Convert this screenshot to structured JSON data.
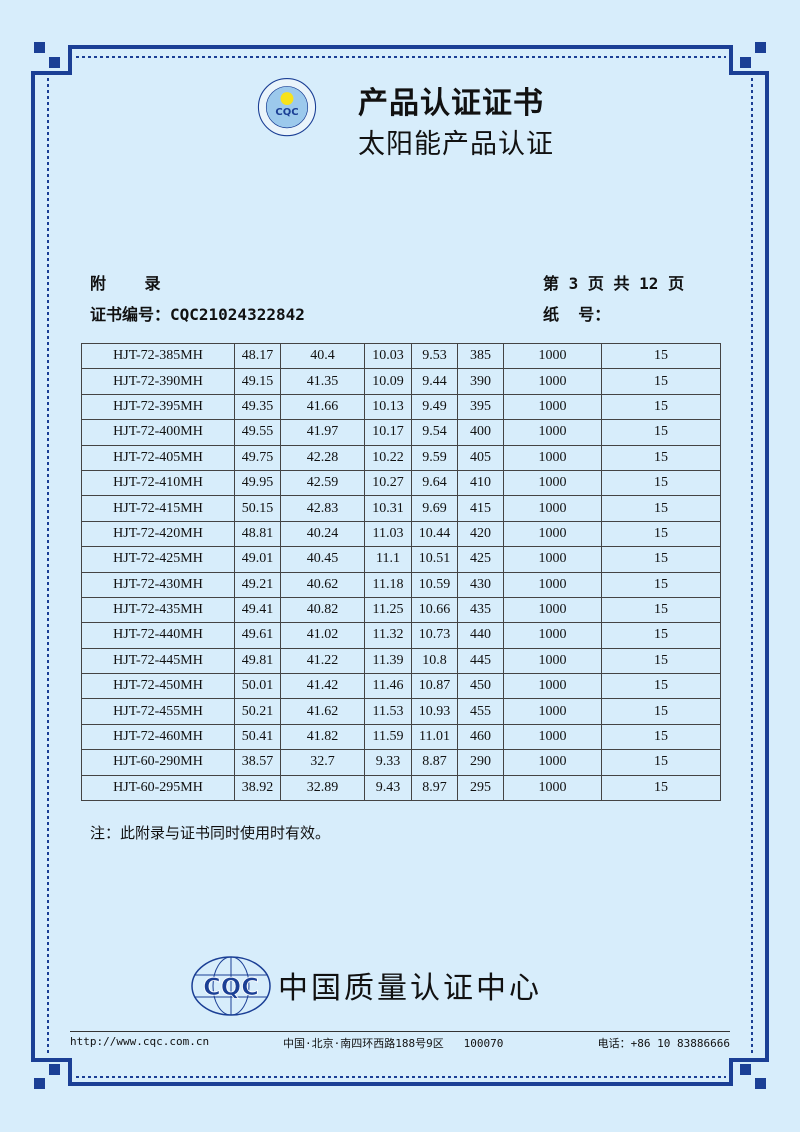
{
  "header": {
    "logo_text": "CQC",
    "logo_ring_top": "太阳能产品认证",
    "logo_ring_bottom": "中国质量认证中心",
    "title": "产品认证证书",
    "subtitle": "太阳能产品认证"
  },
  "meta": {
    "appendix_label": "附    录",
    "page_info": "第 3 页 共 12 页",
    "cert_no": "证书编号：CQC21024322842",
    "paper_no": "纸  号："
  },
  "table": {
    "rows": [
      [
        "HJT-72-385MH",
        "48.17",
        "40.4",
        "10.03",
        "9.53",
        "385",
        "1000",
        "15"
      ],
      [
        "HJT-72-390MH",
        "49.15",
        "41.35",
        "10.09",
        "9.44",
        "390",
        "1000",
        "15"
      ],
      [
        "HJT-72-395MH",
        "49.35",
        "41.66",
        "10.13",
        "9.49",
        "395",
        "1000",
        "15"
      ],
      [
        "HJT-72-400MH",
        "49.55",
        "41.97",
        "10.17",
        "9.54",
        "400",
        "1000",
        "15"
      ],
      [
        "HJT-72-405MH",
        "49.75",
        "42.28",
        "10.22",
        "9.59",
        "405",
        "1000",
        "15"
      ],
      [
        "HJT-72-410MH",
        "49.95",
        "42.59",
        "10.27",
        "9.64",
        "410",
        "1000",
        "15"
      ],
      [
        "HJT-72-415MH",
        "50.15",
        "42.83",
        "10.31",
        "9.69",
        "415",
        "1000",
        "15"
      ],
      [
        "HJT-72-420MH",
        "48.81",
        "40.24",
        "11.03",
        "10.44",
        "420",
        "1000",
        "15"
      ],
      [
        "HJT-72-425MH",
        "49.01",
        "40.45",
        "11.1",
        "10.51",
        "425",
        "1000",
        "15"
      ],
      [
        "HJT-72-430MH",
        "49.21",
        "40.62",
        "11.18",
        "10.59",
        "430",
        "1000",
        "15"
      ],
      [
        "HJT-72-435MH",
        "49.41",
        "40.82",
        "11.25",
        "10.66",
        "435",
        "1000",
        "15"
      ],
      [
        "HJT-72-440MH",
        "49.61",
        "41.02",
        "11.32",
        "10.73",
        "440",
        "1000",
        "15"
      ],
      [
        "HJT-72-445MH",
        "49.81",
        "41.22",
        "11.39",
        "10.8",
        "445",
        "1000",
        "15"
      ],
      [
        "HJT-72-450MH",
        "50.01",
        "41.42",
        "11.46",
        "10.87",
        "450",
        "1000",
        "15"
      ],
      [
        "HJT-72-455MH",
        "50.21",
        "41.62",
        "11.53",
        "10.93",
        "455",
        "1000",
        "15"
      ],
      [
        "HJT-72-460MH",
        "50.41",
        "41.82",
        "11.59",
        "11.01",
        "460",
        "1000",
        "15"
      ],
      [
        "HJT-60-290MH",
        "38.57",
        "32.7",
        "9.33",
        "8.87",
        "290",
        "1000",
        "15"
      ],
      [
        "HJT-60-295MH",
        "38.92",
        "32.89",
        "9.43",
        "8.97",
        "295",
        "1000",
        "15"
      ]
    ]
  },
  "note": "注：此附录与证书同时使用时有效。",
  "footer": {
    "logo_text": "CQC",
    "org_name": "中国质量认证中心",
    "website": "http://www.cqc.com.cn",
    "address": "中国·北京·南四环西路188号9区   100070",
    "phone": "电话：+86 10 83886666"
  },
  "colors": {
    "frame": "#1b3f95",
    "background": "#d7edfb"
  }
}
